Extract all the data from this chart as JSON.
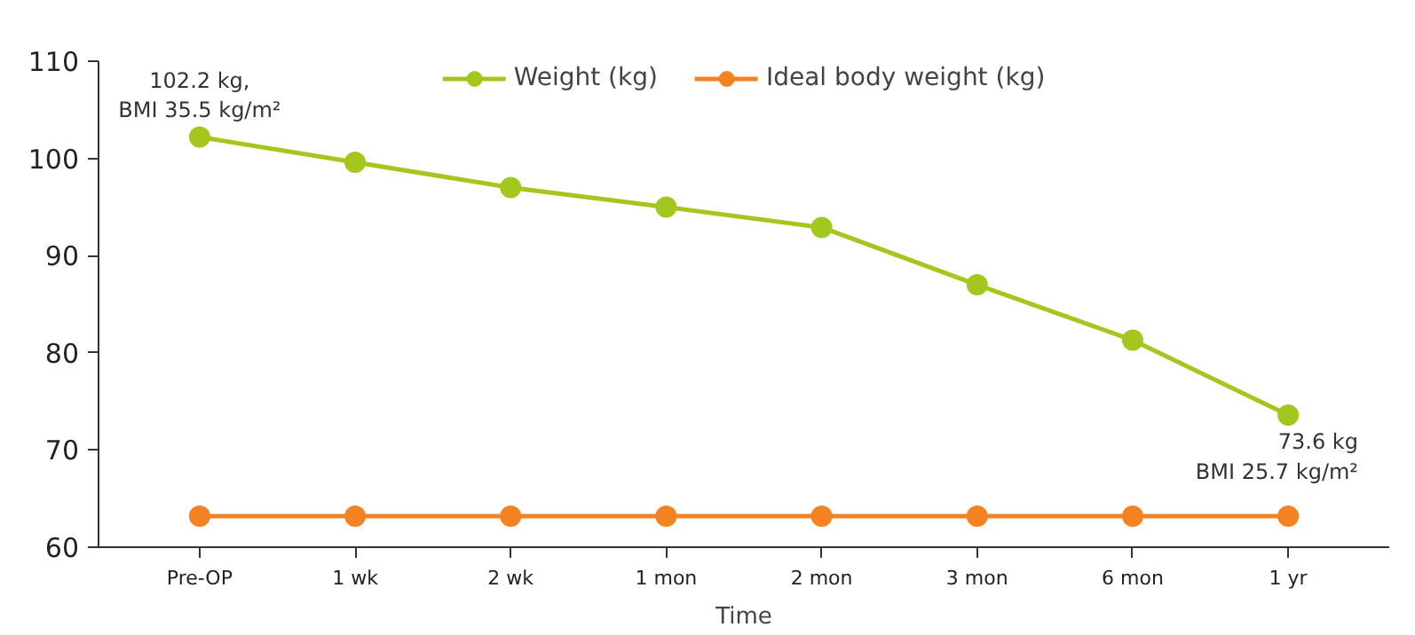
{
  "chart_data": {
    "type": "line",
    "xlabel": "Time",
    "categories": [
      "Pre-OP",
      "1 wk",
      "2 wk",
      "1 mon",
      "2 mon",
      "3 mon",
      "6 mon",
      "1 yr"
    ],
    "series": [
      {
        "name": "Weight (kg)",
        "color": "#a3c71c",
        "values": [
          102.2,
          99.6,
          97.0,
          95.0,
          92.9,
          87.0,
          81.3,
          73.6
        ]
      },
      {
        "name": "Ideal body weight (kg)",
        "color": "#f58220",
        "values": [
          63.2,
          63.2,
          63.2,
          63.2,
          63.2,
          63.2,
          63.2,
          63.2
        ]
      }
    ],
    "ylim": [
      60,
      110
    ],
    "yticks": [
      60,
      70,
      80,
      90,
      100,
      110
    ],
    "grid": false,
    "legend": "top",
    "marker": "circle",
    "line_style": "solid",
    "annotations": [
      {
        "text": "102.2 kg,\nBMI 35.5 kg/m²",
        "x": "Pre-OP",
        "y": 102.2
      },
      {
        "text": "73.6 kg\nBMI 25.7 kg/m²",
        "x": "1 yr",
        "y": 73.6
      }
    ]
  }
}
